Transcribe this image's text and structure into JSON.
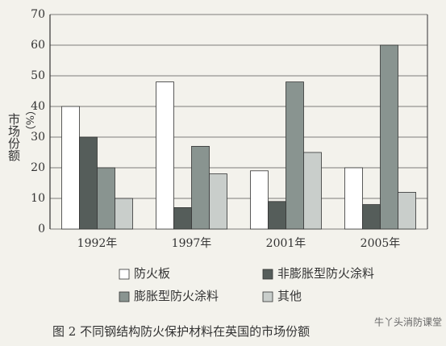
{
  "chart_data": {
    "type": "bar",
    "ylabel": "市场份额",
    "ylabel_unit": "（%）",
    "caption": "图 2   不同钢结构防火保护材料在英国的市场份额",
    "watermark": "牛丫头消防课堂",
    "categories": [
      "1992年",
      "1997年",
      "2001年",
      "2005年"
    ],
    "series": [
      {
        "name": "防火板",
        "color": "#ffffff",
        "values": [
          40,
          48,
          19,
          20
        ]
      },
      {
        "name": "非膨胀型防火涂料",
        "color": "#555d5a",
        "values": [
          30,
          7,
          9,
          8
        ]
      },
      {
        "name": "膨胀型防火涂料",
        "color": "#899490",
        "values": [
          20,
          27,
          48,
          60
        ]
      },
      {
        "name": "其他",
        "color": "#c9cecb",
        "values": [
          10,
          18,
          25,
          12
        ]
      }
    ],
    "ylim": [
      0,
      70
    ],
    "yticks": [
      0,
      10,
      20,
      30,
      40,
      50,
      60,
      70
    ],
    "grid": true
  }
}
